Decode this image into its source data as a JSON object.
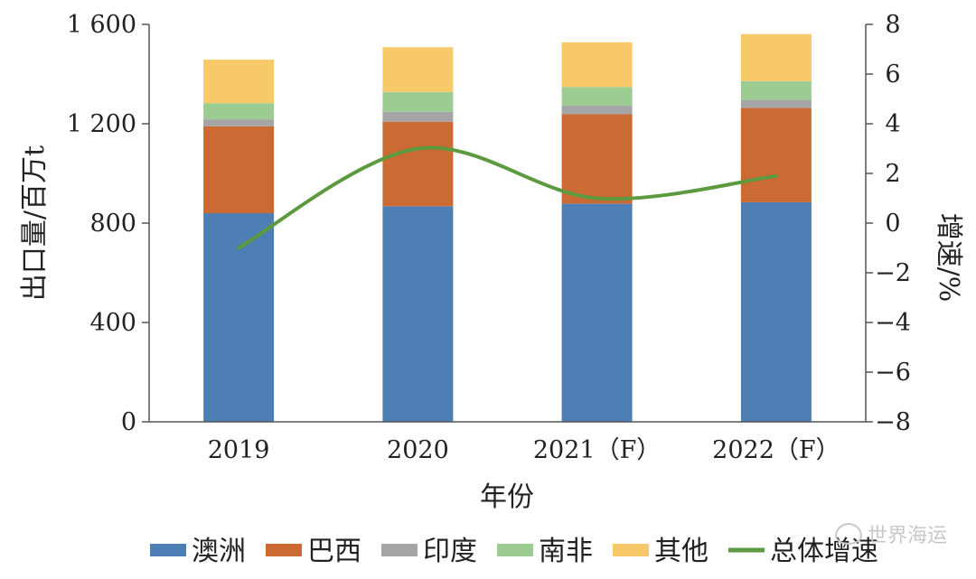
{
  "chart_data": {
    "type": "bar",
    "stacked": true,
    "categories": [
      "2019",
      "2020",
      "2021（F）",
      "2022（F）"
    ],
    "series": [
      {
        "name": "澳洲",
        "values": [
          840,
          868,
          878,
          884
        ],
        "color": "#4e7fb4"
      },
      {
        "name": "巴西",
        "values": [
          350,
          340,
          360,
          380
        ],
        "color": "#cb6a33"
      },
      {
        "name": "印度",
        "values": [
          28,
          40,
          35,
          32
        ],
        "color": "#a5a5a5"
      },
      {
        "name": "南非",
        "values": [
          65,
          80,
          75,
          75
        ],
        "color": "#9ccc92"
      },
      {
        "name": "其他",
        "values": [
          175,
          180,
          180,
          190
        ],
        "color": "#f8c968"
      }
    ],
    "line_series": {
      "name": "总体增速",
      "values": [
        -1.0,
        3.0,
        1.0,
        1.9
      ],
      "color": "#5d9a3f",
      "axis": "right"
    },
    "xlabel": "年份",
    "ylabel": "出口量/百万t",
    "y2label": "增速/%",
    "ylim": [
      0,
      1600
    ],
    "y2lim": [
      -8,
      8
    ],
    "yticks": [
      "0",
      "400",
      "800",
      "1 200",
      "1 600"
    ],
    "y2ticks": [
      "−8",
      "−6",
      "−4",
      "−2",
      "0",
      "2",
      "4",
      "6",
      "8"
    ],
    "legend_position": "bottom",
    "grid": false
  },
  "watermark": "世界海运"
}
